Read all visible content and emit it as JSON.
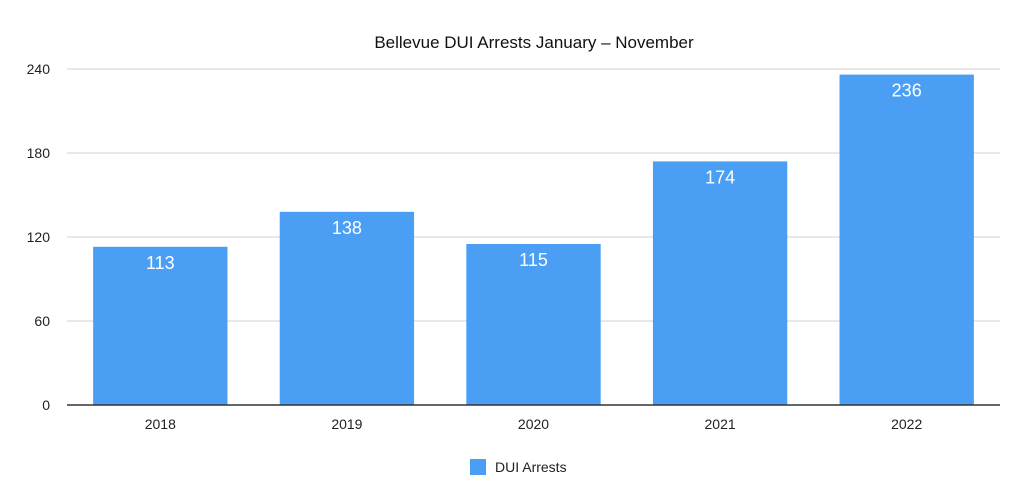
{
  "chart_data": {
    "type": "bar",
    "title": "Bellevue DUI Arrests January – November",
    "xlabel": "",
    "ylabel": "",
    "categories": [
      "2018",
      "2019",
      "2020",
      "2021",
      "2022"
    ],
    "series": [
      {
        "name": "DUI Arrests",
        "values": [
          113,
          138,
          115,
          174,
          236
        ],
        "color": "#4a9ff5"
      }
    ],
    "ylim": [
      0,
      240
    ],
    "yticks": [
      0,
      60,
      120,
      180,
      240
    ],
    "data_labels": true,
    "grid": true,
    "legend": "bottom-center"
  }
}
